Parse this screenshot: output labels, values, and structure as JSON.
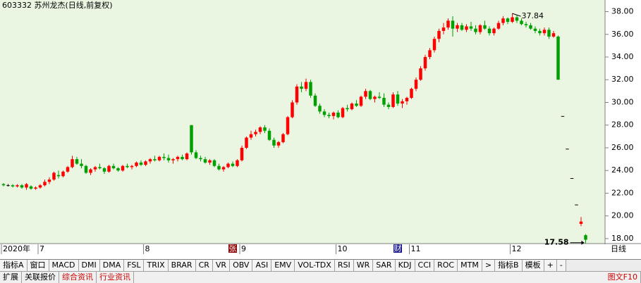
{
  "chart_data": {
    "type": "candlestick",
    "title": "603332 苏州龙杰(日线,前复权)",
    "period": "日线",
    "background": "#eaf6e2",
    "up_color": "#ff0000",
    "down_color": "#00a000",
    "flat_color": "#000000",
    "categories": [
      "2020年",
      null,
      null,
      null,
      null,
      null,
      null,
      null,
      "7",
      null,
      null,
      null,
      null,
      null,
      null,
      null,
      null,
      null,
      null,
      null,
      null,
      null,
      null,
      null,
      null,
      null,
      null,
      null,
      null,
      null,
      null,
      "8",
      null,
      null,
      null,
      null,
      null,
      null,
      null,
      null,
      null,
      null,
      null,
      null,
      null,
      null,
      null,
      null,
      null,
      null,
      null,
      null,
      "9",
      null,
      null,
      null,
      null,
      null,
      null,
      null,
      null,
      null,
      null,
      null,
      null,
      null,
      null,
      null,
      null,
      null,
      null,
      null,
      null,
      "10",
      null,
      null,
      null,
      null,
      null,
      null,
      null,
      null,
      null,
      null,
      null,
      null,
      null,
      null,
      null,
      "11",
      null,
      null,
      null,
      null,
      null,
      null,
      null,
      null,
      null,
      null,
      null,
      null,
      null,
      null,
      null,
      null,
      null,
      null,
      null,
      null,
      null,
      "12",
      null,
      null,
      null,
      null,
      null,
      null,
      null,
      null,
      null,
      null,
      null,
      null,
      null,
      null,
      null,
      null
    ],
    "events": [
      null,
      null,
      null,
      null,
      null,
      null,
      null,
      null,
      null,
      null,
      null,
      null,
      null,
      null,
      null,
      null,
      null,
      null,
      null,
      null,
      null,
      null,
      null,
      null,
      null,
      null,
      null,
      null,
      null,
      null,
      null,
      null,
      null,
      null,
      null,
      null,
      null,
      null,
      null,
      null,
      null,
      null,
      null,
      null,
      null,
      null,
      null,
      null,
      null,
      null,
      "张",
      null,
      null,
      null,
      null,
      null,
      null,
      null,
      null,
      null,
      null,
      null,
      null,
      null,
      null,
      null,
      null,
      null,
      null,
      null,
      null,
      null,
      null,
      null,
      null,
      null,
      null,
      null,
      null,
      null,
      null,
      null,
      null,
      null,
      null,
      null,
      "财",
      null,
      null,
      null,
      null,
      null,
      null,
      null,
      null,
      null,
      null,
      null,
      null,
      null,
      null,
      null,
      null,
      null,
      null,
      null,
      null,
      null,
      null,
      null,
      null,
      null,
      null,
      null,
      null,
      null,
      null,
      null,
      null,
      null,
      null,
      null,
      null,
      null,
      null,
      null,
      null,
      null
    ],
    "open": [
      22.8,
      22.7,
      22.7,
      22.6,
      22.7,
      22.5,
      22.6,
      22.4,
      22.5,
      22.7,
      23.0,
      23.2,
      23.6,
      23.5,
      23.9,
      24.3,
      25.0,
      24.6,
      24.4,
      23.8,
      24.1,
      24.3,
      24.2,
      23.9,
      24.4,
      24.2,
      24.0,
      24.4,
      24.3,
      24.4,
      24.7,
      24.5,
      24.8,
      25.0,
      24.9,
      25.2,
      25.1,
      24.9,
      25.0,
      25.2,
      25.0,
      28.0,
      25.6,
      25.1,
      25.0,
      24.7,
      24.9,
      24.4,
      24.1,
      24.3,
      24.6,
      24.4,
      24.9,
      26.0,
      26.9,
      27.2,
      27.4,
      27.8,
      27.5,
      26.7,
      26.2,
      26.5,
      27.2,
      28.7,
      30.0,
      31.4,
      31.2,
      31.8,
      30.6,
      29.7,
      29.2,
      28.9,
      28.8,
      29.1,
      28.7,
      29.5,
      29.4,
      29.9,
      29.7,
      30.5,
      31.0,
      30.3,
      30.5,
      30.4,
      29.8,
      29.6,
      30.7,
      29.9,
      30.1,
      30.4,
      31.2,
      32.0,
      33.0,
      34.0,
      34.6,
      35.6,
      36.3,
      36.6,
      37.2,
      36.5,
      36.8,
      36.4,
      36.7,
      36.5,
      36.2,
      36.8,
      36.5,
      36.1,
      36.5,
      37.0,
      37.4,
      37.1,
      37.5,
      37.2,
      36.9,
      36.8,
      36.5,
      36.3,
      36.1,
      36.4,
      35.8,
      35.8,
      28.8,
      25.92,
      23.33,
      21.0,
      19.3,
      18.3
    ],
    "high": [
      22.9,
      22.8,
      22.8,
      22.8,
      22.8,
      22.9,
      22.7,
      22.6,
      22.8,
      23.2,
      23.4,
      23.9,
      24.0,
      24.0,
      24.4,
      25.3,
      25.2,
      25.0,
      24.5,
      24.2,
      24.4,
      24.6,
      24.3,
      24.5,
      24.6,
      24.3,
      24.5,
      24.6,
      24.5,
      24.8,
      24.9,
      24.9,
      25.1,
      25.3,
      25.3,
      25.5,
      25.4,
      25.1,
      25.3,
      25.4,
      25.6,
      28.0,
      25.8,
      25.3,
      25.2,
      25.0,
      25.0,
      24.6,
      24.4,
      24.7,
      24.8,
      25.0,
      26.2,
      27.0,
      27.5,
      27.6,
      27.9,
      28.0,
      27.7,
      26.9,
      26.6,
      27.3,
      28.8,
      30.2,
      31.6,
      31.8,
      32.1,
      32.0,
      30.8,
      29.9,
      29.4,
      29.1,
      29.2,
      29.3,
      29.6,
      29.8,
      30.0,
      30.2,
      30.6,
      31.2,
      31.1,
      30.6,
      30.9,
      30.8,
      30.0,
      30.9,
      31.0,
      30.3,
      30.5,
      31.3,
      32.2,
      33.2,
      34.2,
      34.8,
      35.8,
      36.5,
      37.0,
      37.4,
      37.6,
      37.0,
      37.0,
      36.9,
      37.1,
      36.8,
      36.9,
      37.2,
      36.7,
      36.6,
      37.2,
      37.6,
      37.5,
      37.84,
      37.7,
      37.4,
      37.1,
      37.0,
      36.7,
      36.5,
      36.6,
      36.6,
      36.3,
      35.9,
      28.8,
      25.92,
      23.33,
      21.0,
      19.9,
      18.4
    ],
    "low": [
      22.6,
      22.6,
      22.5,
      22.5,
      22.4,
      22.3,
      22.3,
      22.3,
      22.4,
      22.6,
      22.8,
      23.1,
      23.3,
      23.4,
      23.8,
      24.2,
      24.5,
      24.2,
      23.7,
      23.6,
      23.9,
      24.1,
      23.7,
      23.8,
      24.1,
      23.9,
      23.9,
      24.2,
      24.1,
      24.3,
      24.4,
      24.4,
      24.6,
      24.8,
      24.8,
      24.9,
      24.7,
      24.6,
      24.8,
      24.9,
      24.9,
      25.4,
      25.0,
      24.8,
      24.6,
      24.5,
      24.3,
      24.0,
      23.9,
      24.2,
      24.3,
      24.3,
      24.8,
      25.9,
      26.7,
      27.0,
      27.2,
      27.3,
      26.6,
      26.0,
      26.0,
      26.4,
      27.1,
      28.6,
      29.8,
      30.9,
      31.0,
      30.4,
      29.6,
      29.0,
      28.7,
      28.6,
      28.5,
      28.6,
      28.6,
      29.2,
      29.3,
      29.6,
      29.6,
      30.3,
      30.2,
      30.0,
      30.3,
      29.6,
      29.4,
      29.5,
      29.7,
      29.5,
      29.8,
      30.3,
      31.0,
      31.9,
      32.8,
      33.8,
      34.4,
      35.3,
      36.0,
      36.4,
      35.8,
      36.2,
      36.3,
      36.2,
      36.3,
      36.0,
      36.0,
      36.4,
      35.9,
      35.9,
      36.4,
      36.8,
      36.9,
      37.0,
      37.0,
      36.8,
      36.6,
      36.4,
      36.1,
      35.9,
      35.9,
      35.6,
      35.7,
      32.0,
      28.8,
      25.92,
      23.33,
      21.0,
      19.1,
      17.58
    ],
    "close": [
      22.7,
      22.7,
      22.6,
      22.7,
      22.5,
      22.8,
      22.4,
      22.5,
      22.7,
      23.0,
      23.2,
      23.8,
      23.5,
      23.9,
      24.3,
      25.0,
      24.6,
      24.4,
      23.8,
      24.1,
      24.3,
      24.2,
      23.9,
      24.4,
      24.2,
      24.0,
      24.4,
      24.3,
      24.4,
      24.7,
      24.5,
      24.8,
      25.0,
      24.9,
      25.2,
      25.1,
      24.9,
      25.0,
      25.2,
      25.0,
      25.5,
      25.6,
      25.1,
      25.0,
      24.7,
      24.9,
      24.4,
      24.1,
      24.3,
      24.6,
      24.4,
      24.9,
      26.0,
      26.9,
      27.2,
      27.4,
      27.8,
      27.5,
      26.7,
      26.2,
      26.5,
      27.2,
      28.7,
      30.0,
      31.4,
      31.2,
      31.8,
      30.6,
      29.7,
      29.2,
      28.9,
      28.8,
      29.1,
      28.7,
      29.5,
      29.4,
      29.9,
      29.7,
      30.5,
      31.0,
      30.3,
      30.5,
      30.4,
      29.8,
      29.6,
      30.7,
      29.9,
      30.1,
      30.4,
      31.2,
      32.0,
      33.0,
      34.0,
      34.6,
      35.6,
      36.3,
      36.6,
      37.2,
      36.5,
      36.8,
      36.4,
      36.7,
      36.5,
      36.2,
      36.8,
      36.5,
      36.1,
      36.5,
      37.0,
      37.4,
      37.1,
      37.5,
      37.2,
      36.9,
      36.8,
      36.5,
      36.3,
      36.1,
      36.4,
      35.8,
      36.1,
      32.0,
      28.8,
      25.92,
      23.33,
      21.0,
      19.5,
      17.9
    ],
    "high_marker": 111,
    "low_marker": 127,
    "ylim": [
      17.5,
      38.9
    ],
    "yticks": [
      {
        "value": 18,
        "label": "18.00"
      },
      {
        "value": 20,
        "label": "20.00"
      },
      {
        "value": 22,
        "label": "22.00"
      },
      {
        "value": 24,
        "label": "24.00"
      },
      {
        "value": 26,
        "label": "26.00"
      },
      {
        "value": 28,
        "label": "28.00"
      },
      {
        "value": 30,
        "label": "30.00"
      },
      {
        "value": 32,
        "label": "32.00"
      },
      {
        "value": 34,
        "label": "34.00"
      },
      {
        "value": 36,
        "label": "36.00"
      },
      {
        "value": 38,
        "label": "38.00"
      }
    ]
  },
  "toolbar": {
    "tabs": [
      "指标A",
      "窗口",
      "MACD",
      "DMI",
      "DMA",
      "FSL",
      "TRIX",
      "BRAR",
      "CR",
      "VR",
      "OBV",
      "ASI",
      "EMV",
      "VOL-TDX",
      "RSI",
      "WR",
      "SAR",
      "KDJ",
      "CCI",
      "ROC",
      "MTM",
      ">",
      "指标B",
      "模板",
      "+",
      "-"
    ]
  },
  "bottom_bar": {
    "tabs": [
      "扩展",
      "关联报价",
      "综合资讯",
      "行业资讯"
    ],
    "right": "图文F10"
  }
}
